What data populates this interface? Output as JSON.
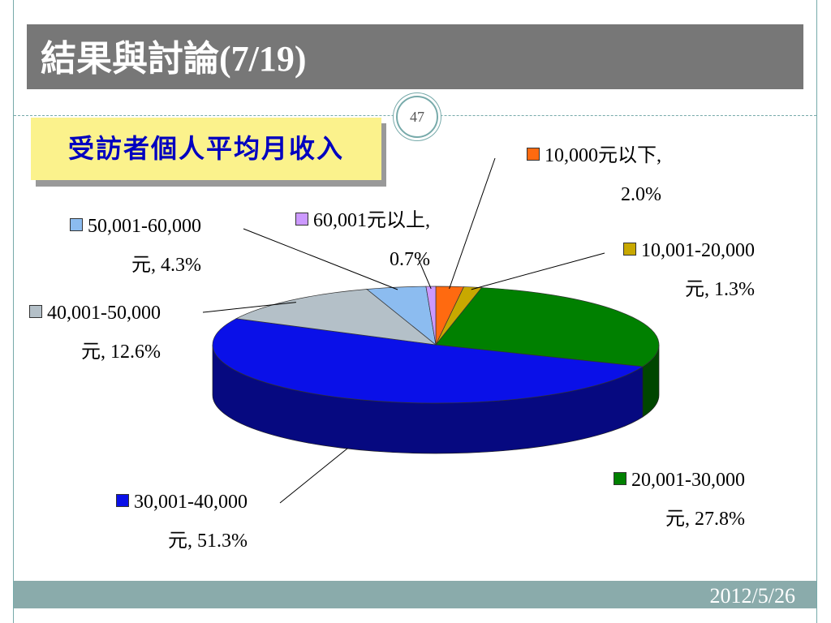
{
  "slide": {
    "title": "結果與討論(7/19)",
    "page_number": "47",
    "date": "2012/5/26"
  },
  "chart_data": {
    "type": "pie",
    "title": "受訪者個人平均月收入",
    "categories": [
      "10,000元以下",
      "10,001-20,000元",
      "20,001-30,000元",
      "30,001-40,000元",
      "40,001-50,000元",
      "50,001-60,000元",
      "60,001元以上"
    ],
    "values": [
      2.0,
      1.3,
      27.8,
      51.3,
      12.6,
      4.3,
      0.7
    ],
    "value_labels": [
      "2.0%",
      "1.3%",
      "27.8%",
      "51.3%",
      "12.6%",
      "4.3%",
      "0.7%"
    ],
    "label_separator": ",",
    "colors": [
      "#ff6a10",
      "#c8a800",
      "#008000",
      "#0a10e8",
      "#b4c0c8",
      "#8cbcf0",
      "#cc99ff"
    ]
  }
}
